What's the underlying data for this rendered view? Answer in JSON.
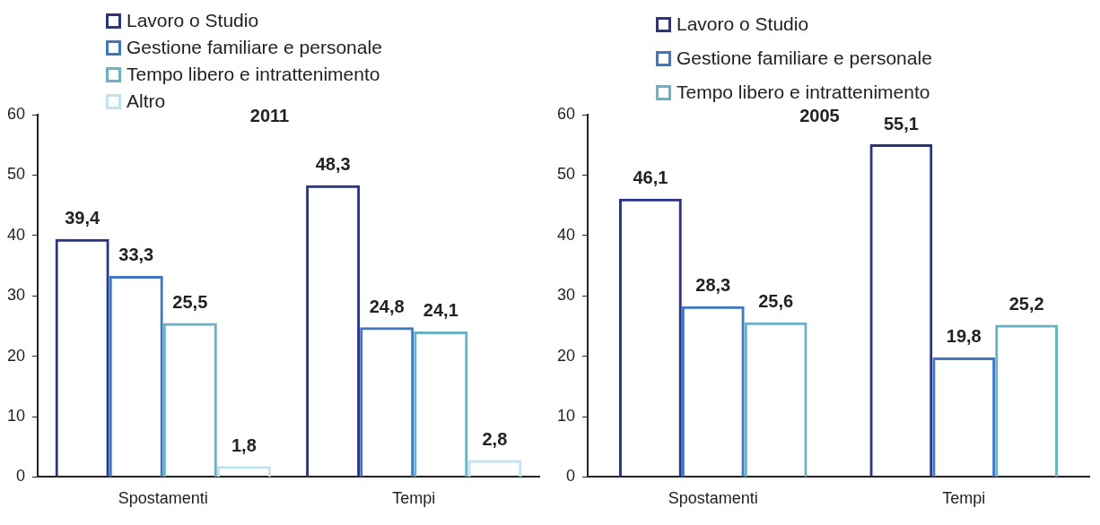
{
  "chart_data": [
    {
      "type": "bar",
      "title": "2011",
      "categories": [
        "Spostamenti",
        "Tempi"
      ],
      "legend": "top",
      "grid": false,
      "ylim": [
        0,
        60
      ],
      "yticks": [
        0,
        10,
        20,
        30,
        40,
        50,
        60
      ],
      "series": [
        {
          "name": "Lavoro o Studio",
          "color": "#2b3383",
          "values": [
            39.4,
            48.3
          ],
          "value_labels": [
            "39,4",
            "48,3"
          ]
        },
        {
          "name": "Gestione familiare e personale",
          "color": "#3e78c2",
          "values": [
            33.3,
            24.8
          ],
          "value_labels": [
            "33,3",
            "24,8"
          ]
        },
        {
          "name": "Tempo libero e intrattenimento",
          "color": "#6bb1c4",
          "values": [
            25.5,
            24.1
          ],
          "value_labels": [
            "25,5",
            "24,1"
          ]
        },
        {
          "name": "Altro",
          "color": "#c0e4ef",
          "values": [
            1.8,
            2.8
          ],
          "value_labels": [
            "1,8",
            "2,8"
          ]
        }
      ]
    },
    {
      "type": "bar",
      "title": "2005",
      "categories": [
        "Spostamenti",
        "Tempi"
      ],
      "legend": "top",
      "grid": false,
      "ylim": [
        0,
        60
      ],
      "yticks": [
        0,
        10,
        20,
        30,
        40,
        50,
        60
      ],
      "series": [
        {
          "name": "Lavoro o Studio",
          "color": "#2b3383",
          "values": [
            46.1,
            55.1
          ],
          "value_labels": [
            "46,1",
            "55,1"
          ]
        },
        {
          "name": "Gestione familiare e personale",
          "color": "#3e78c2",
          "values": [
            28.3,
            19.8
          ],
          "value_labels": [
            "28,3",
            "19,8"
          ]
        },
        {
          "name": "Tempo libero e intrattenimento",
          "color": "#6bb1c4",
          "values": [
            25.6,
            25.2
          ],
          "value_labels": [
            "25,6",
            "25,2"
          ]
        }
      ]
    }
  ]
}
